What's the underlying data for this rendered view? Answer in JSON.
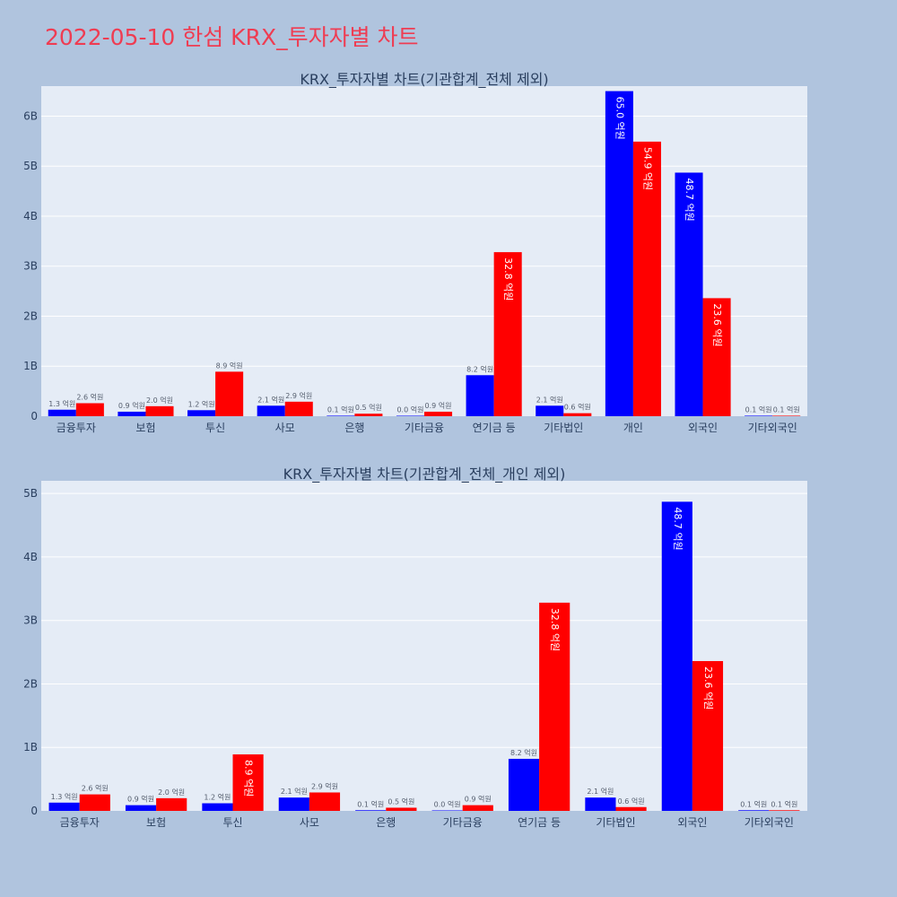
{
  "page": {
    "title": "2022-05-10 한섬 KRX_투자자별 차트"
  },
  "colors": {
    "series_a": "#0000ff",
    "series_b": "#ff0000",
    "plot_bg": "#e5ecf6",
    "page_bg": "#b0c4de",
    "title": "#ef3c52"
  },
  "chart_data": [
    {
      "type": "bar",
      "title": "KRX_투자자별 차트(기관합계_전체 제외)",
      "categories": [
        "금융투자",
        "보험",
        "투신",
        "사모",
        "은행",
        "기타금융",
        "연기금 등",
        "기타법인",
        "개인",
        "외국인",
        "기타외국인"
      ],
      "series": [
        {
          "values": [
            0.13,
            0.09,
            0.12,
            0.21,
            0.01,
            0.0,
            0.82,
            0.21,
            6.5,
            4.87,
            0.01
          ],
          "labels": [
            "1.3 억원",
            "0.9 억원",
            "1.2 억원",
            "2.1 억원",
            "0.1 억원",
            "0.0 억원",
            "8.2 억원",
            "2.1 억원",
            "65.0 억원",
            "48.7 억원",
            "0.1 억원"
          ]
        },
        {
          "values": [
            0.26,
            0.2,
            0.89,
            0.29,
            0.05,
            0.09,
            3.28,
            0.06,
            5.49,
            2.36,
            0.01
          ],
          "labels": [
            "2.6 억원",
            "2.0 억원",
            "8.9 억원",
            "2.9 억원",
            "0.5 억원",
            "0.9 억원",
            "32.8 억원",
            "0.6 억원",
            "54.9 억원",
            "23.6 억원",
            "0.1 억원"
          ]
        }
      ],
      "yticks": [
        "0",
        "1B",
        "2B",
        "3B",
        "4B",
        "5B",
        "6B"
      ],
      "ylim": [
        0,
        6.6
      ],
      "grid": true,
      "legend": "none"
    },
    {
      "type": "bar",
      "title": "KRX_투자자별 차트(기관합계_전체_개인 제외)",
      "categories": [
        "금융투자",
        "보험",
        "투신",
        "사모",
        "은행",
        "기타금융",
        "연기금 등",
        "기타법인",
        "외국인",
        "기타외국인"
      ],
      "series": [
        {
          "values": [
            0.13,
            0.09,
            0.12,
            0.21,
            0.01,
            0.0,
            0.82,
            0.21,
            4.87,
            0.01
          ],
          "labels": [
            "1.3 억원",
            "0.9 억원",
            "1.2 억원",
            "2.1 억원",
            "0.1 억원",
            "0.0 억원",
            "8.2 억원",
            "2.1 억원",
            "48.7 억원",
            "0.1 억원"
          ]
        },
        {
          "values": [
            0.26,
            0.2,
            0.89,
            0.29,
            0.05,
            0.09,
            3.28,
            0.06,
            2.36,
            0.01
          ],
          "labels": [
            "2.6 억원",
            "2.0 억원",
            "8.9 억원",
            "2.9 억원",
            "0.5 억원",
            "0.9 억원",
            "32.8 억원",
            "0.6 억원",
            "23.6 억원",
            "0.1 억원"
          ]
        }
      ],
      "yticks": [
        "0",
        "1B",
        "2B",
        "3B",
        "4B",
        "5B"
      ],
      "ylim": [
        0,
        5.2
      ],
      "grid": true,
      "legend": "none"
    }
  ]
}
